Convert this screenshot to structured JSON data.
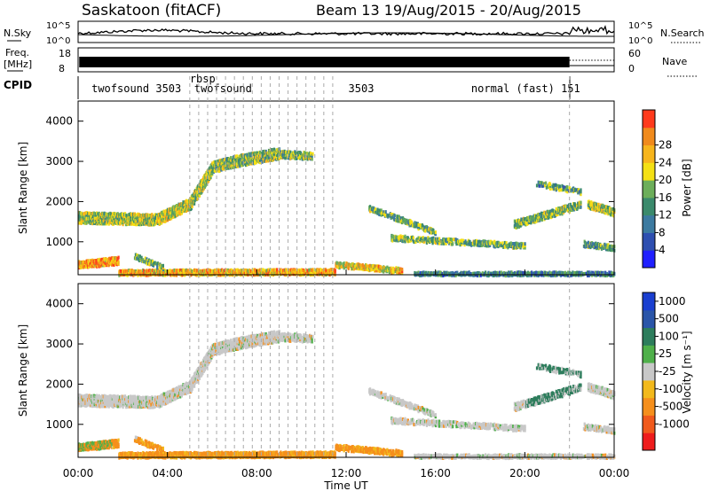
{
  "header": {
    "station": "Saskatoon (fitACF)",
    "beam_info": "Beam 13 19/Aug/2015 - 20/Aug/2015"
  },
  "colors": {
    "power_scale": [
      "#2020ff",
      "#2e4fb0",
      "#3c7aa0",
      "#3b8a6c",
      "#6cae5a",
      "#f4e014",
      "#f7b51c",
      "#f08a1c",
      "#ff3a1c"
    ],
    "velocity_scale": [
      "#1a3fd0",
      "#2a55a8",
      "#2d7d5c",
      "#4fb04a",
      "#c8c8c8",
      "#f2b91c",
      "#f58f1c",
      "#f05a1c",
      "#ee1c1c"
    ],
    "velocity_neutral": "#c6c6c6",
    "power_main": "#3d8a66"
  },
  "chart_data": [
    {
      "type": "line",
      "name": "noise-panel",
      "left_label": "N.Sky",
      "right_label": "N.Search",
      "left_ticks": [
        "10^5",
        "10^0"
      ],
      "right_ticks": [
        "10^5",
        "10^0"
      ],
      "x_range_hours": [
        0,
        24
      ]
    },
    {
      "type": "line",
      "name": "freq-panel",
      "left_label": "Freq.",
      "left_unit": "[MHz]",
      "right_label": "Nave",
      "left_ticks": [
        "18",
        "8"
      ],
      "right_ticks": [
        "60",
        "0"
      ]
    },
    {
      "type": "table",
      "name": "cpid-panel",
      "label": "CPID",
      "entries": [
        {
          "text": "twofsound 3503",
          "x": 0.6
        },
        {
          "text": "rbsp",
          "x": 5.0
        },
        {
          "text": "normal (fast) 151",
          "x": 17.6
        },
        {
          "text": "twofsound",
          "x": 5.2
        },
        {
          "text": "3503",
          "x": 12.1
        }
      ],
      "dashed_markers_hours": [
        5.0,
        5.4,
        5.8,
        6.2,
        6.6,
        7.0,
        7.4,
        7.8,
        8.2,
        8.6,
        9.0,
        9.4,
        9.8,
        10.2,
        10.6,
        11.0,
        11.4,
        22.0
      ]
    },
    {
      "type": "heatmap",
      "name": "power",
      "ylabel": "Slant Range [km]",
      "yticks": [
        1000,
        2000,
        3000,
        4000
      ],
      "ylim": [
        180,
        4500
      ],
      "xlim": [
        0,
        24
      ],
      "colorbar_label": "Power [dB]",
      "colorbar_ticks": [
        4,
        8,
        12,
        16,
        20,
        24,
        28
      ]
    },
    {
      "type": "heatmap",
      "name": "velocity",
      "ylabel": "Slant Range [km]",
      "yticks": [
        1000,
        2000,
        3000,
        4000
      ],
      "ylim": [
        180,
        4500
      ],
      "xlim": [
        0,
        24
      ],
      "colorbar_label": "Velocity [m s⁻¹]",
      "colorbar_ticks": [
        1000,
        500,
        100,
        25,
        -25,
        -100,
        -500,
        -1000
      ],
      "xticks": [
        "00:00",
        "04:00",
        "08:00",
        "12:00",
        "16:00",
        "20:00",
        "00:00"
      ],
      "xlabel": "Time UT"
    }
  ]
}
